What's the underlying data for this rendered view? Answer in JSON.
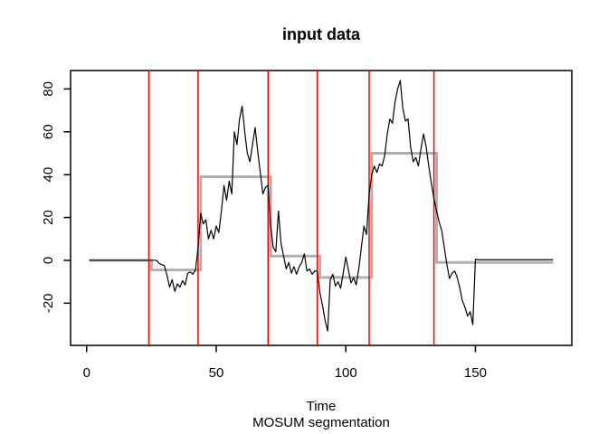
{
  "window": {
    "background": "#ffffff"
  },
  "chart_data": {
    "type": "line",
    "title": "input data",
    "xlabel": "Time",
    "sublabel": "MOSUM segmentation",
    "x_ticks": [
      0,
      50,
      100,
      150
    ],
    "y_ticks": [
      -20,
      0,
      20,
      40,
      60,
      80
    ],
    "xlim": [
      -6.2,
      187.2
    ],
    "ylim": [
      -39.7,
      88.6
    ],
    "grid": false,
    "legend": false,
    "colors": {
      "data_line": "#000000",
      "segment_mean_line": "#b0b0b0",
      "changepoint_line": "#ff0000",
      "axis": "#000000"
    },
    "x_start": 1,
    "series": {
      "name": "input data",
      "values": [
        0,
        0,
        0,
        0,
        0,
        0,
        0,
        0,
        0,
        0,
        0,
        0,
        0,
        0,
        0,
        0,
        0,
        0,
        0,
        0,
        0,
        0,
        0,
        0,
        0,
        0,
        0,
        -1.5,
        -2,
        -2.5,
        -7,
        -12.5,
        -9,
        -14.5,
        -11,
        -12.5,
        -9.5,
        -11.5,
        -6,
        -5.5,
        -6.5,
        -4.5,
        6,
        22,
        17,
        19,
        10,
        14,
        10,
        16,
        13,
        23,
        35,
        28,
        37,
        31,
        60,
        54,
        66,
        72,
        60,
        50,
        46,
        54,
        62,
        51,
        41,
        31,
        34,
        35,
        16,
        6,
        4,
        23,
        8,
        2,
        -4,
        -1,
        -6,
        -3,
        -6.5,
        -3,
        -1,
        3,
        -5,
        -4,
        -6.5,
        -5,
        -5,
        -15,
        -21,
        -28,
        -33,
        -9,
        -6.5,
        -12,
        -10,
        -13,
        -6,
        1.5,
        -4.5,
        -10.5,
        -8,
        -11.5,
        -4,
        6,
        16,
        12,
        31,
        40,
        44,
        41,
        45,
        44,
        49,
        59,
        66,
        64,
        74,
        80,
        84,
        71,
        65,
        66,
        53,
        46,
        48,
        44,
        52,
        59,
        53,
        44,
        36,
        29,
        23,
        18,
        14,
        6,
        -2,
        -8.5,
        -6,
        -5,
        -8,
        -13,
        -19,
        -22,
        -26,
        -24,
        -30,
        0.5,
        0.3,
        0.3,
        0.3,
        0.3,
        0.3,
        0.3,
        0.3,
        0.3,
        0.3,
        0.3,
        0.3,
        0.3,
        0.3,
        0.3,
        0.3,
        0.3,
        0.3,
        0.3,
        0.3,
        0.3,
        0.3,
        0.3,
        0.3,
        0.3,
        0.3,
        0.3,
        0.3,
        0.3,
        0.3,
        0.3
      ]
    },
    "segment_means": {
      "segments": [
        {
          "from": 1,
          "to": 25,
          "mean": 0
        },
        {
          "from": 25,
          "to": 44,
          "mean": -4.5
        },
        {
          "from": 44,
          "to": 71,
          "mean": 39
        },
        {
          "from": 71,
          "to": 90,
          "mean": 2
        },
        {
          "from": 90,
          "to": 110,
          "mean": -8
        },
        {
          "from": 110,
          "to": 135,
          "mean": 50
        },
        {
          "from": 135,
          "to": 180,
          "mean": -1
        }
      ]
    },
    "changepoints": {
      "values": [
        24,
        43,
        70,
        89,
        109,
        134
      ]
    }
  }
}
